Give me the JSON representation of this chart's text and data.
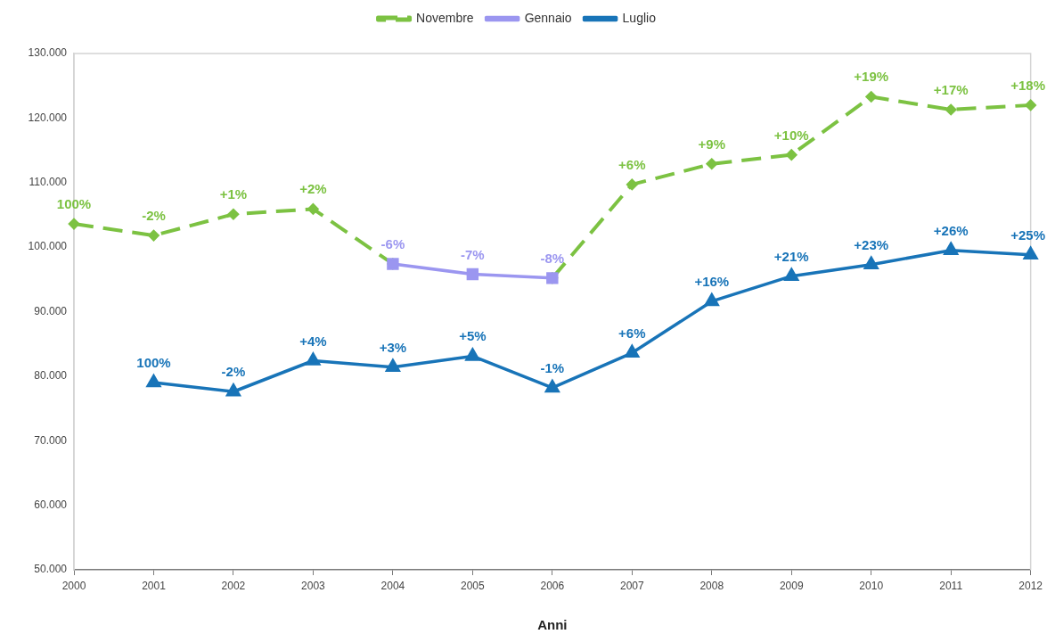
{
  "chart_data": {
    "type": "line",
    "xlabel": "Anni",
    "categories": [
      "2000",
      "2001",
      "2002",
      "2003",
      "2004",
      "2005",
      "2006",
      "2007",
      "2008",
      "2009",
      "2010",
      "2011",
      "2012"
    ],
    "ylim": [
      50000,
      130000
    ],
    "yticks": [
      {
        "value": 50000,
        "label": "50.000"
      },
      {
        "value": 60000,
        "label": "60.000"
      },
      {
        "value": 70000,
        "label": "70.000"
      },
      {
        "value": 80000,
        "label": "80.000"
      },
      {
        "value": 90000,
        "label": "90.000"
      },
      {
        "value": 100000,
        "label": "100.000"
      },
      {
        "value": 110000,
        "label": "110.000"
      },
      {
        "value": 120000,
        "label": "120.000"
      },
      {
        "value": 130000,
        "label": "130.000"
      }
    ],
    "grid": false,
    "legend": "top",
    "series": [
      {
        "name": "Novembre",
        "color": "#7cc242",
        "marker": "diamond",
        "line_style": "dashed",
        "values": [
          103600,
          101800,
          105100,
          105900,
          97400,
          null,
          95200,
          109700,
          112900,
          114300,
          123300,
          121300,
          122000
        ]
      },
      {
        "name": "Gennaio",
        "color": "#9b96f0",
        "marker": "square",
        "line_style": "solid",
        "values": [
          null,
          null,
          null,
          null,
          97400,
          95800,
          95200,
          null,
          null,
          null,
          null,
          null,
          null
        ]
      },
      {
        "name": "Luglio",
        "color": "#1874b8",
        "marker": "triangle",
        "line_style": "solid",
        "values": [
          null,
          79000,
          77600,
          82400,
          81400,
          83100,
          78200,
          83600,
          91600,
          95500,
          97300,
          99500,
          98800
        ]
      }
    ],
    "annotations": [
      {
        "text": "100%",
        "x": "2000",
        "y": 103600
      },
      {
        "text": "-2%",
        "x": "2001",
        "y": 101800
      },
      {
        "text": "+1%",
        "x": "2002",
        "y": 105100
      },
      {
        "text": "+2%",
        "x": "2003",
        "y": 105900
      },
      {
        "text": "+6%",
        "x": "2007",
        "y": 109700
      },
      {
        "text": "+9%",
        "x": "2008",
        "y": 112900
      },
      {
        "text": "+10%",
        "x": "2009",
        "y": 114300
      },
      {
        "text": "+19%",
        "x": "2010",
        "y": 123300
      },
      {
        "text": "+17%",
        "x": "2011",
        "y": 121300
      },
      {
        "text": "+18%",
        "x": "2012",
        "y": 122000
      },
      {
        "text": "-6%",
        "x": "2004",
        "y": 97400
      },
      {
        "text": "-7%",
        "x": "2005",
        "y": 95800
      },
      {
        "text": "-8%",
        "x": "2006",
        "y": 95200
      },
      {
        "text": "100%",
        "x": "2001",
        "y": 79000
      },
      {
        "text": "-2%",
        "x": "2002",
        "y": 77600
      },
      {
        "text": "+4%",
        "x": "2003",
        "y": 82400
      },
      {
        "text": "+3%",
        "x": "2004",
        "y": 81400
      },
      {
        "text": "+5%",
        "x": "2005",
        "y": 83100
      },
      {
        "text": "-1%",
        "x": "2006",
        "y": 78200
      },
      {
        "text": "+6%",
        "x": "2007",
        "y": 83600
      },
      {
        "text": "+16%",
        "x": "2008",
        "y": 91600
      },
      {
        "text": "+21%",
        "x": "2009",
        "y": 95500
      },
      {
        "text": "+23%",
        "x": "2010",
        "y": 97300
      },
      {
        "text": "+26%",
        "x": "2011",
        "y": 99500
      },
      {
        "text": "+25%",
        "x": "2012",
        "y": 98800
      }
    ]
  }
}
